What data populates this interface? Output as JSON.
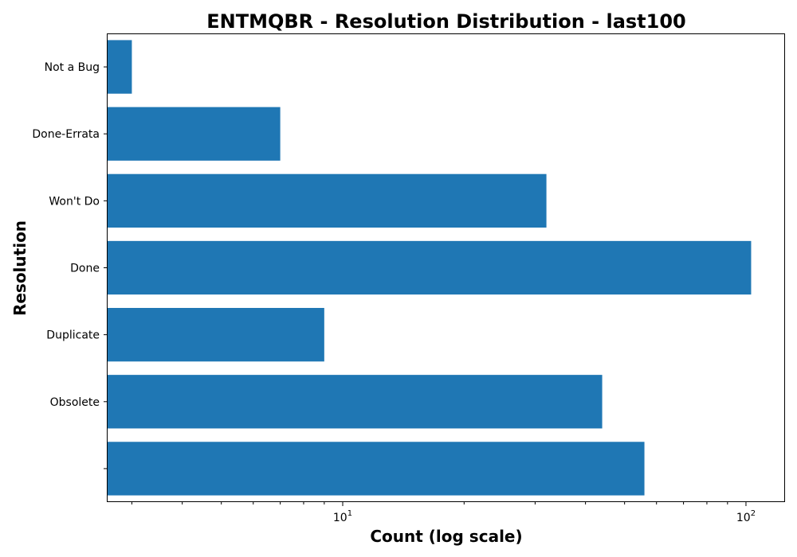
{
  "chart_data": {
    "type": "bar",
    "orientation": "horizontal",
    "title": "ENTMQBR - Resolution Distribution - last100",
    "xlabel": "Count (log scale)",
    "ylabel": "Resolution",
    "x_scale": "log",
    "xlim": [
      2.6,
      125
    ],
    "x_ticks": [
      {
        "value": 10,
        "label_base": "10",
        "label_exp": "1"
      },
      {
        "value": 100,
        "label_base": "10",
        "label_exp": "2"
      }
    ],
    "x_minor_ticks": [
      3,
      4,
      5,
      6,
      7,
      8,
      9,
      20,
      30,
      40,
      50,
      60,
      70,
      80,
      90
    ],
    "categories": [
      "",
      "Obsolete",
      "Duplicate",
      "Done",
      "Won't Do",
      "Done-Errata",
      "Not a Bug"
    ],
    "values": [
      56,
      44,
      9,
      103,
      32,
      7,
      3
    ],
    "bar_color": "#1f77b4",
    "grid": false,
    "legend": false
  }
}
